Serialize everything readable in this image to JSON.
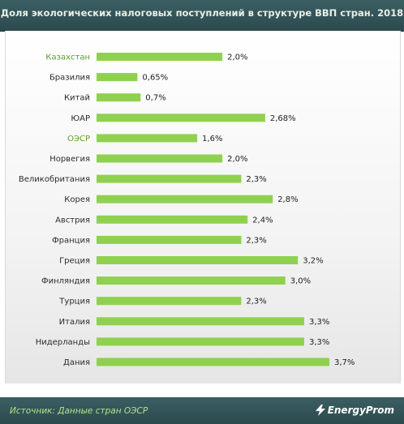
{
  "header": {
    "title": "Доля экологических налоговых поступлений в структуре ВВП стран. 2018"
  },
  "footer": {
    "source": "Источник: Данные стран ОЭСР",
    "brand": "EnergyProm"
  },
  "colors": {
    "bar": "#8fd14f",
    "highlight_label": "#5c9e2e",
    "label": "#2b2b2b"
  },
  "chart_data": {
    "type": "bar",
    "orientation": "horizontal",
    "categories": [
      "Казахстан",
      "Бразилия",
      "Китай",
      "ЮАР",
      "ОЭСР",
      "Норвегия",
      "Великобритания",
      "Корея",
      "Австрия",
      "Франция",
      "Греция",
      "Финляндия",
      "Турция",
      "Италия",
      "Нидерланды",
      "Дания"
    ],
    "values": [
      2.0,
      0.65,
      0.7,
      2.68,
      1.6,
      2.0,
      2.3,
      2.8,
      2.4,
      2.3,
      3.2,
      3.0,
      2.3,
      3.3,
      3.3,
      3.7
    ],
    "value_labels": [
      "2,0%",
      "0,65%",
      "0,7%",
      "2,68%",
      "1,6%",
      "2,0%",
      "2,3%",
      "2,8%",
      "2,4%",
      "2,3%",
      "3,2%",
      "3,0%",
      "2,3%",
      "3,3%",
      "3,3%",
      "3,7%"
    ],
    "highlighted": [
      "Казахстан",
      "ОЭСР"
    ],
    "unit": "%",
    "xlim": [
      0,
      3.7
    ],
    "title": "Доля экологических налоговых поступлений в структуре ВВП стран. 2018",
    "grid": false,
    "legend": "none"
  }
}
